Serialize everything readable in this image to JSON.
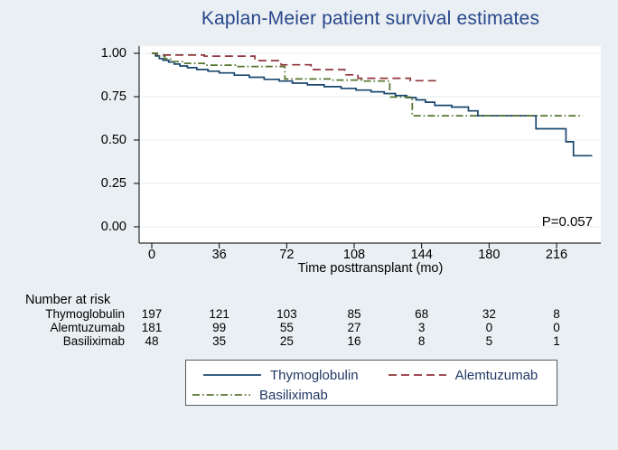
{
  "title": "Kaplan-Meier patient survival estimates",
  "chart_data": {
    "type": "line",
    "subtype": "kaplan-meier-step",
    "title": "Kaplan-Meier patient survival estimates",
    "xlabel": "Time posttransplant (mo)",
    "ylabel": "",
    "xlim": [
      0,
      240
    ],
    "ylim": [
      0,
      1
    ],
    "x_ticks": [
      0,
      36,
      72,
      108,
      144,
      180,
      216
    ],
    "y_ticks": [
      {
        "v": 1.0,
        "label": "1.00"
      },
      {
        "v": 0.75,
        "label": "0.75"
      },
      {
        "v": 0.5,
        "label": "0.50"
      },
      {
        "v": 0.25,
        "label": "0.25"
      },
      {
        "v": 0.0,
        "label": "0.00"
      }
    ],
    "grid": "horizontal",
    "legend_position": "bottom",
    "annotation": "P=0.057",
    "series": [
      {
        "name": "Thymoglobulin",
        "color": "#1a476f",
        "dash": "solid",
        "points": [
          [
            0,
            1.0
          ],
          [
            2,
            0.985
          ],
          [
            4,
            0.97
          ],
          [
            6,
            0.96
          ],
          [
            9,
            0.95
          ],
          [
            12,
            0.938
          ],
          [
            15,
            0.927
          ],
          [
            19,
            0.917
          ],
          [
            24,
            0.907
          ],
          [
            30,
            0.897
          ],
          [
            36,
            0.887
          ],
          [
            44,
            0.874
          ],
          [
            52,
            0.862
          ],
          [
            60,
            0.85
          ],
          [
            68,
            0.84
          ],
          [
            75,
            0.828
          ],
          [
            83,
            0.818
          ],
          [
            92,
            0.808
          ],
          [
            101,
            0.798
          ],
          [
            109,
            0.788
          ],
          [
            117,
            0.778
          ],
          [
            124,
            0.768
          ],
          [
            130,
            0.757
          ],
          [
            136,
            0.745
          ],
          [
            141,
            0.732
          ],
          [
            146,
            0.718
          ],
          [
            151,
            0.7
          ],
          [
            160,
            0.69
          ],
          [
            169,
            0.668
          ],
          [
            174,
            0.64
          ],
          [
            205,
            0.565
          ],
          [
            221,
            0.49
          ],
          [
            225,
            0.41
          ],
          [
            235,
            0.41
          ]
        ]
      },
      {
        "name": "Alemtuzumab",
        "color": "#90353b",
        "dash": "dashed",
        "points": [
          [
            0,
            1.0
          ],
          [
            3,
            0.99
          ],
          [
            28,
            0.984
          ],
          [
            55,
            0.958
          ],
          [
            69,
            0.934
          ],
          [
            85,
            0.906
          ],
          [
            103,
            0.876
          ],
          [
            110,
            0.856
          ],
          [
            138,
            0.842
          ],
          [
            153,
            0.842
          ]
        ]
      },
      {
        "name": "Basiliximab",
        "color": "#55752f",
        "dash": "dashdot",
        "points": [
          [
            0,
            1.0
          ],
          [
            3,
            0.984
          ],
          [
            7,
            0.968
          ],
          [
            10,
            0.952
          ],
          [
            17,
            0.942
          ],
          [
            28,
            0.932
          ],
          [
            46,
            0.924
          ],
          [
            71,
            0.852
          ],
          [
            96,
            0.846
          ],
          [
            112,
            0.84
          ],
          [
            127,
            0.748
          ],
          [
            139,
            0.64
          ],
          [
            230,
            0.64
          ]
        ]
      }
    ]
  },
  "risk_table": {
    "header": "Number at risk",
    "time_points": [
      0,
      36,
      72,
      108,
      144,
      180,
      216
    ],
    "rows": [
      {
        "label": "Thymoglobulin",
        "counts": [
          "197",
          "121",
          "103",
          "85",
          "68",
          "32",
          "8"
        ]
      },
      {
        "label": "Alemtuzumab",
        "counts": [
          "181",
          "99",
          "55",
          "27",
          "3",
          "0",
          "0"
        ]
      },
      {
        "label": "Basiliximab",
        "counts": [
          "48",
          "35",
          "25",
          "16",
          "8",
          "5",
          "1"
        ]
      }
    ]
  },
  "legend": {
    "entries": [
      {
        "label": "Thymoglobulin"
      },
      {
        "label": "Alemtuzumab"
      },
      {
        "label": "Basiliximab"
      }
    ]
  },
  "colors": {
    "background": "#e9eff2",
    "plot_background": "#ffffff",
    "gridline": "#e2edf0",
    "axis": "#000000",
    "title_text": "#28468c",
    "legend_text": "#1f3864",
    "legend_border": "#5a5a5a"
  }
}
